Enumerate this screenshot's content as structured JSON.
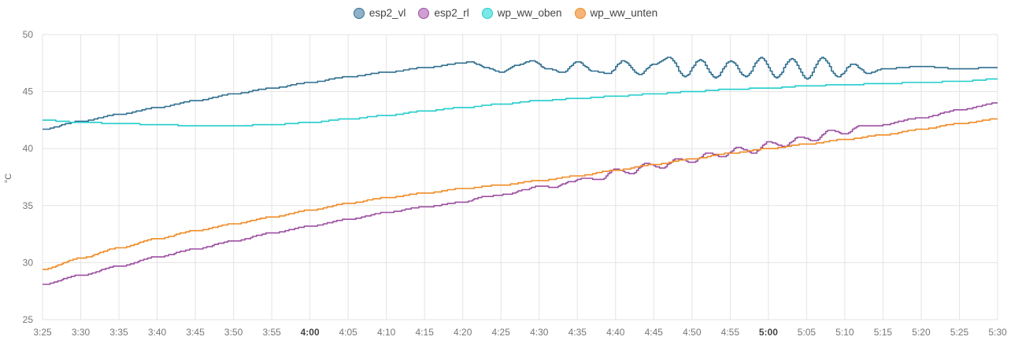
{
  "chart_data": {
    "type": "line",
    "ylabel": "°C",
    "ylim": [
      25,
      50
    ],
    "yticks": [
      25,
      30,
      35,
      40,
      45,
      50
    ],
    "xlim": [
      "3:25",
      "5:30"
    ],
    "xticks": [
      "3:25",
      "3:30",
      "3:35",
      "3:40",
      "3:45",
      "3:50",
      "3:55",
      "4:00",
      "4:05",
      "4:10",
      "4:15",
      "4:20",
      "4:25",
      "4:30",
      "4:35",
      "4:40",
      "4:45",
      "4:50",
      "4:55",
      "5:00",
      "5:05",
      "5:10",
      "5:15",
      "5:20",
      "5:25",
      "5:30"
    ],
    "bold_ticks": [
      "4:00",
      "5:00"
    ],
    "grid": true,
    "legend_position": "top-center",
    "series": [
      {
        "name": "esp2_vl",
        "color": "#2f6f8f",
        "fill": "#8fb2c9",
        "x": [
          "3:25",
          "3:30",
          "3:35",
          "3:40",
          "3:45",
          "3:50",
          "3:55",
          "4:00",
          "4:05",
          "4:10",
          "4:15",
          "4:20",
          "4:21",
          "4:23",
          "4:25",
          "4:27",
          "4:29",
          "4:31",
          "4:33",
          "4:35",
          "4:37",
          "4:39",
          "4:41",
          "4:43",
          "4:45",
          "4:47",
          "4:49",
          "4:51",
          "4:53",
          "4:55",
          "4:57",
          "4:59",
          "5:01",
          "5:03",
          "5:05",
          "5:07",
          "5:09",
          "5:11",
          "5:13",
          "5:15",
          "5:20",
          "5:25",
          "5:30"
        ],
        "y": [
          41.7,
          42.4,
          43.0,
          43.6,
          44.2,
          44.8,
          45.3,
          45.8,
          46.3,
          46.7,
          47.1,
          47.5,
          47.6,
          47.1,
          46.7,
          47.3,
          47.7,
          47.0,
          46.7,
          47.6,
          46.8,
          46.6,
          47.7,
          46.5,
          47.4,
          48.0,
          46.3,
          47.8,
          46.2,
          47.7,
          46.3,
          48.0,
          46.2,
          47.9,
          46.1,
          48.0,
          46.3,
          47.4,
          46.6,
          47.0,
          47.2,
          47.0,
          47.1
        ]
      },
      {
        "name": "esp2_rl",
        "color": "#9b4fa0",
        "fill": "#cf9fd3",
        "x": [
          "3:25",
          "3:30",
          "3:35",
          "3:40",
          "3:45",
          "3:50",
          "3:55",
          "4:00",
          "4:05",
          "4:10",
          "4:15",
          "4:20",
          "4:23",
          "4:26",
          "4:28",
          "4:30",
          "4:32",
          "4:34",
          "4:36",
          "4:38",
          "4:40",
          "4:42",
          "4:44",
          "4:46",
          "4:48",
          "4:50",
          "4:52",
          "4:54",
          "4:56",
          "4:58",
          "5:00",
          "5:02",
          "5:04",
          "5:06",
          "5:08",
          "5:10",
          "5:12",
          "5:14",
          "5:20",
          "5:25",
          "5:30"
        ],
        "y": [
          28.1,
          28.9,
          29.7,
          30.5,
          31.2,
          31.9,
          32.6,
          33.2,
          33.8,
          34.4,
          34.9,
          35.3,
          35.8,
          36.0,
          36.4,
          36.7,
          36.6,
          37.1,
          37.4,
          37.3,
          38.2,
          37.8,
          38.7,
          38.3,
          39.1,
          38.8,
          39.6,
          39.3,
          40.1,
          39.6,
          40.6,
          40.2,
          41.0,
          40.7,
          41.6,
          41.3,
          42.0,
          42.0,
          42.7,
          43.4,
          44.0
        ]
      },
      {
        "name": "wp_ww_oben",
        "color": "#22cccc",
        "fill": "#7ae8e8",
        "x": [
          "3:25",
          "3:30",
          "3:35",
          "3:40",
          "3:45",
          "3:50",
          "3:55",
          "4:00",
          "4:05",
          "4:10",
          "4:15",
          "4:20",
          "4:25",
          "4:30",
          "4:35",
          "4:40",
          "4:45",
          "4:50",
          "4:55",
          "5:00",
          "5:05",
          "5:10",
          "5:15",
          "5:20",
          "5:25",
          "5:30"
        ],
        "y": [
          42.5,
          42.3,
          42.2,
          42.1,
          42.0,
          42.0,
          42.1,
          42.3,
          42.6,
          42.9,
          43.3,
          43.6,
          43.9,
          44.2,
          44.4,
          44.6,
          44.8,
          45.0,
          45.2,
          45.3,
          45.5,
          45.6,
          45.7,
          45.8,
          45.9,
          46.1
        ]
      },
      {
        "name": "wp_ww_unten",
        "color": "#f08a24",
        "fill": "#f8b57a",
        "x": [
          "3:25",
          "3:30",
          "3:35",
          "3:40",
          "3:45",
          "3:50",
          "3:55",
          "4:00",
          "4:05",
          "4:10",
          "4:15",
          "4:20",
          "4:25",
          "4:30",
          "4:35",
          "4:40",
          "4:45",
          "4:50",
          "4:55",
          "5:00",
          "5:05",
          "5:10",
          "5:15",
          "5:20",
          "5:25",
          "5:30"
        ],
        "y": [
          29.4,
          30.4,
          31.3,
          32.1,
          32.8,
          33.4,
          34.0,
          34.6,
          35.2,
          35.7,
          36.1,
          36.5,
          36.8,
          37.2,
          37.6,
          38.1,
          38.6,
          39.1,
          39.6,
          40.0,
          40.4,
          40.8,
          41.2,
          41.7,
          42.2,
          42.6
        ]
      }
    ]
  }
}
